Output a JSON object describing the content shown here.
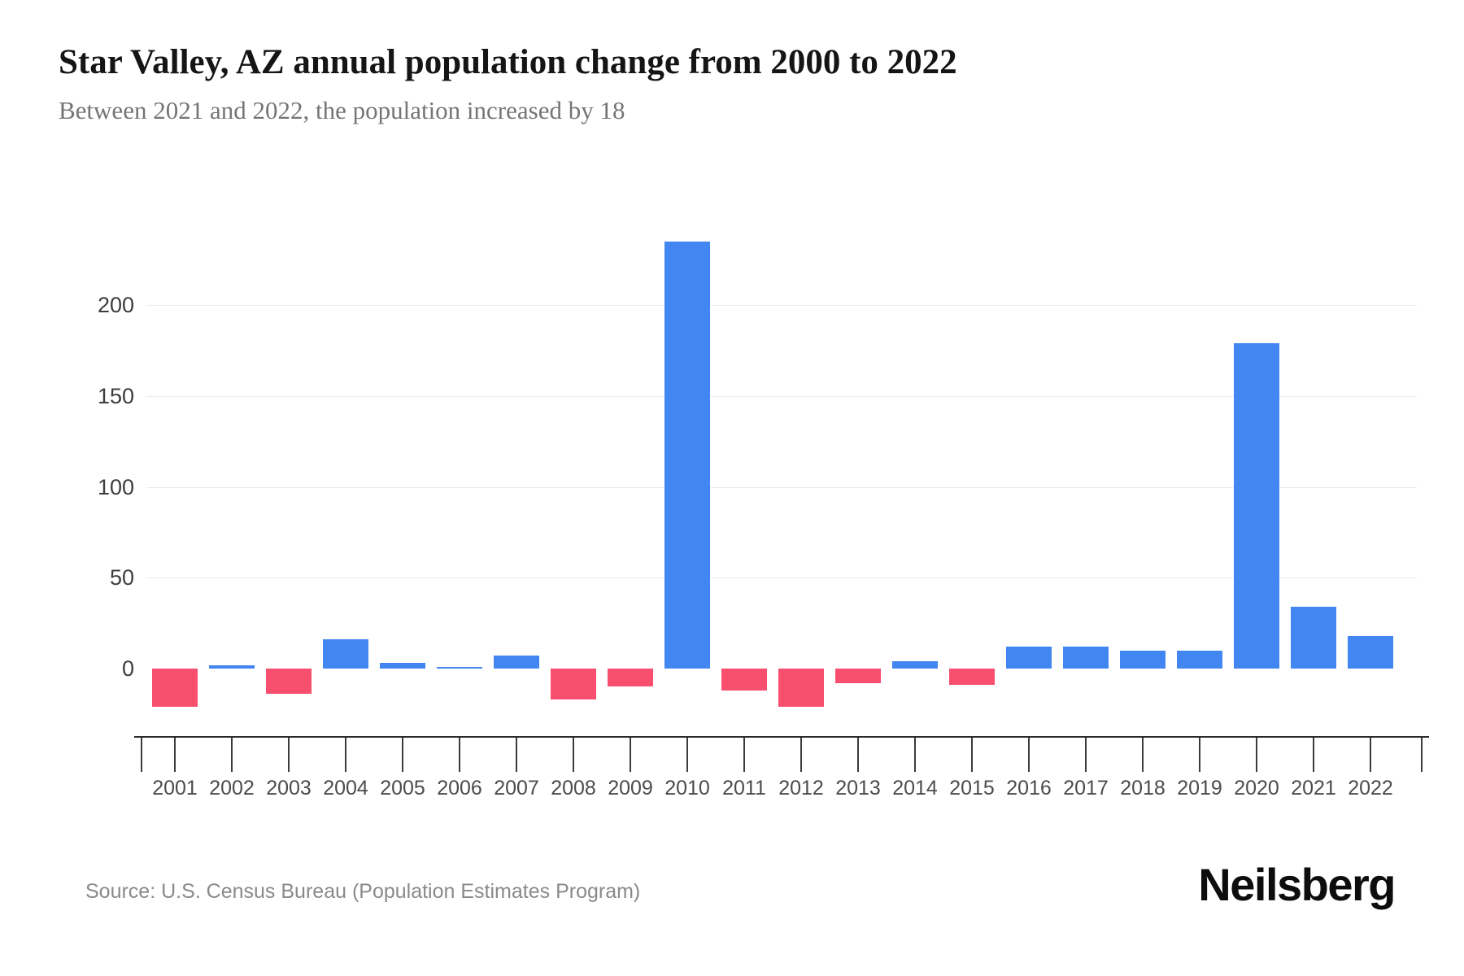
{
  "chart_data": {
    "type": "bar",
    "title": "Star Valley, AZ annual population change from 2000 to 2022",
    "subtitle": "Between 2021 and 2022, the population increased by 18",
    "categories": [
      "2001",
      "2002",
      "2003",
      "2004",
      "2005",
      "2006",
      "2007",
      "2008",
      "2009",
      "2010",
      "2011",
      "2012",
      "2013",
      "2014",
      "2015",
      "2016",
      "2017",
      "2018",
      "2019",
      "2020",
      "2021",
      "2022"
    ],
    "values": [
      -21,
      2,
      -14,
      16,
      3,
      1,
      7,
      -17,
      -10,
      235,
      -12,
      -21,
      -8,
      4,
      -9,
      12,
      12,
      10,
      10,
      179,
      34,
      18
    ],
    "xlabel": "",
    "ylabel": "",
    "yticks": [
      0,
      50,
      100,
      150,
      200
    ],
    "ylim": [
      -37,
      256
    ],
    "grid": true,
    "legend": false,
    "colors": {
      "positive": "#4286f1",
      "negative": "#f84f6e"
    }
  },
  "footer": {
    "source": "Source: U.S. Census Bureau (Population Estimates Program)",
    "logo": "Neilsberg"
  }
}
